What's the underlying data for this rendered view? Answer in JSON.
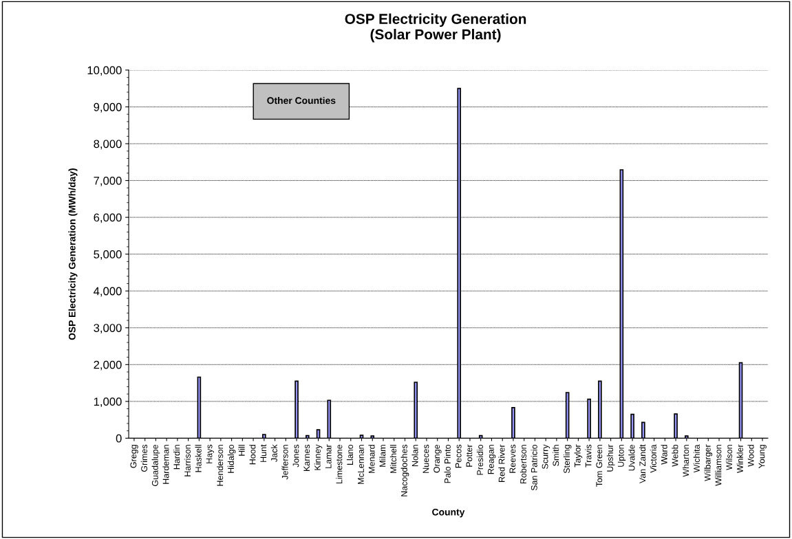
{
  "chart_data": {
    "type": "bar",
    "title": "OSP Electricity Generation\n(Solar Power Plant)",
    "xlabel": "County",
    "ylabel": "OSP Electricity Generation (MWh/day)",
    "categories": [
      "Gregg",
      "Grimes",
      "Guadalupe",
      "Hardeman",
      "Hardin",
      "Harrison",
      "Haskell",
      "Hays",
      "Henderson",
      "Hidalgo",
      "Hill",
      "Hood",
      "Hunt",
      "Jack",
      "Jefferson",
      "Jones",
      "Karnes",
      "Kinney",
      "Lamar",
      "Limestone",
      "Llano",
      "McLennan",
      "Menard",
      "Milam",
      "Mitchell",
      "Nacogdoches",
      "Nolan",
      "Nueces",
      "Orange",
      "Palo Pinto",
      "Pecos",
      "Potter",
      "Presidio",
      "Reagan",
      "Red River",
      "Reeves",
      "Robertson",
      "San Patricio",
      "Scurry",
      "Smith",
      "Sterling",
      "Taylor",
      "Travis",
      "Tom Green",
      "Upshur",
      "Upton",
      "Uvalde",
      "Van Zandt",
      "Victoria",
      "Ward",
      "Webb",
      "Wharton",
      "Wichita",
      "Wilbarger",
      "Williamson",
      "Wilson",
      "Winkler",
      "Wood",
      "Young"
    ],
    "values": [
      0,
      0,
      0,
      0,
      0,
      0,
      1660,
      0,
      0,
      0,
      0,
      0,
      100,
      0,
      0,
      1550,
      70,
      230,
      1030,
      0,
      0,
      80,
      60,
      0,
      0,
      0,
      1520,
      0,
      0,
      0,
      9500,
      0,
      70,
      0,
      0,
      830,
      0,
      0,
      0,
      0,
      1240,
      0,
      1060,
      1550,
      0,
      7290,
      650,
      430,
      0,
      0,
      660,
      60,
      0,
      0,
      0,
      0,
      2050,
      0,
      0
    ],
    "color": "#9999ff",
    "ylim": [
      0,
      10000
    ],
    "yticks": [
      {
        "value": 0,
        "label": "0"
      },
      {
        "value": 1000,
        "label": "1,000"
      },
      {
        "value": 2000,
        "label": "2,000"
      },
      {
        "value": 3000,
        "label": "3,000"
      },
      {
        "value": 4000,
        "label": "4,000"
      },
      {
        "value": 5000,
        "label": "5,000"
      },
      {
        "value": 6000,
        "label": "6,000"
      },
      {
        "value": 7000,
        "label": "7,000"
      },
      {
        "value": 8000,
        "label": "8,000"
      },
      {
        "value": 9000,
        "label": "9,000"
      },
      {
        "value": 10000,
        "label": "10,000"
      }
    ],
    "grid": "y",
    "annotations": [
      "Other Counties"
    ]
  }
}
